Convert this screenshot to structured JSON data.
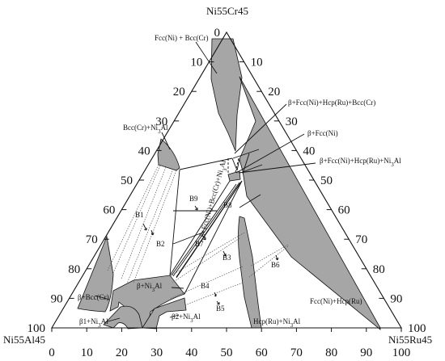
{
  "vertices": {
    "top": "Ni55Cr45",
    "left": "Ni55Al45",
    "right": "Ni55Ru45"
  },
  "axes": {
    "left_ticks": [
      "0",
      "10",
      "20",
      "30",
      "40",
      "50",
      "60",
      "70",
      "80",
      "90",
      "100"
    ],
    "right_ticks": [
      "10",
      "20",
      "30",
      "40",
      "50",
      "60",
      "70",
      "80",
      "90",
      "100"
    ],
    "bottom_ticks": [
      "0",
      "10",
      "20",
      "30",
      "40",
      "50",
      "60",
      "70",
      "80",
      "90",
      "100"
    ]
  },
  "phase_labels": {
    "fcc_bcc": "Fcc(Ni) + Bcc(Cr)",
    "bcc_ni3al": "Bcc(Cr)+Ni3Al",
    "quad_ru_cr": "β+Fcc(Ni)+Hcp(Ru)+Bcc(Cr)",
    "beta_fcc": "β+Fcc(Ni)",
    "quad_ru_ni3al": "β+Fcc(Ni)+Hcp(Ru)+Ni3Al",
    "beta_bcc": "β+Bcc(Cr)",
    "beta_ni3al": "β+Ni3Al",
    "beta2_ni3al": "β2+Ni3Al",
    "beta1_ni3al": "β1+Ni3Al",
    "hcp_ni3al": "Hcp(Ru)+Ni3Al",
    "fcc_hcp": "Fcc(Ni)+Hcp(Ru)",
    "rotated_quad": "β+Fcc(Ni)+Bcc(Cr)+Ni3Al"
  },
  "alloy_points": [
    "B1",
    "B2",
    "B3",
    "B4",
    "B5",
    "B6",
    "B7",
    "B8",
    "B9"
  ],
  "colors": {
    "phase_fill": "#a6a6a6",
    "ink": "#111111"
  }
}
